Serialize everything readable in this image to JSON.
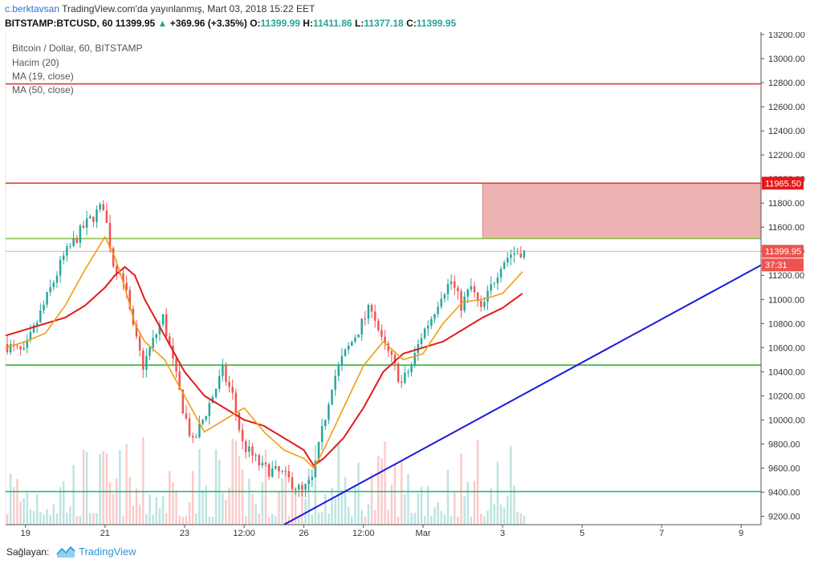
{
  "header": {
    "author": "c.berktavsan",
    "published": "TradingView.com'da yayınlanmış, Mart 03, 2018 15:22 EET",
    "symbol": "BITSTAMP:BTCUSD, 60",
    "last": "11399.95",
    "change": "+369.96 (+3.35%)",
    "o_label": "O:",
    "o": "11399.99",
    "h_label": "H:",
    "h": "11411.86",
    "l_label": "L:",
    "l": "11377.18",
    "c_label": "C:",
    "c": "11399.95"
  },
  "legend": {
    "title": "Bitcoin / Dollar, 60, BITSTAMP",
    "volume": "Hacim (20)",
    "ma19": "MA (19, close)",
    "ma50": "MA (50, close)"
  },
  "chart_data": {
    "type": "candlestick",
    "ylim": [
      9130,
      13220
    ],
    "y_ticks": [
      9200,
      9400,
      9600,
      9800,
      10000,
      10200,
      10400,
      10600,
      10800,
      11000,
      11200,
      11400,
      11600,
      11800,
      12000,
      12200,
      12400,
      12600,
      12800,
      13000,
      13200
    ],
    "x_ticks": [
      "19",
      "21",
      "23",
      "12:00",
      "26",
      "12:00",
      "Mar",
      "3",
      "5",
      "7",
      "9"
    ],
    "price_tags": {
      "upper": "11965.50",
      "last": "11399.95",
      "countdown": "37:31"
    },
    "horizontal_levels": [
      {
        "price": 12790,
        "color": "#e53935"
      },
      {
        "price": 11965.5,
        "color": "#e53935"
      },
      {
        "price": 11505,
        "color": "#8bc34a"
      },
      {
        "price": 10455,
        "color": "#2eb82e"
      },
      {
        "price": 9405,
        "color": "#20c070"
      }
    ],
    "resistance_zone": {
      "price_top": 11965.5,
      "price_bottom": 11505,
      "from": "Mar 2 12:00",
      "to": "open"
    },
    "trendline": {
      "from": {
        "time": "Feb 25 12:00",
        "price": 9130
      },
      "to": {
        "time": "Mar 9 12:00",
        "price": 11285
      },
      "color": "#1a1adb"
    },
    "price_path": [
      [
        "Feb 18 12:00",
        10630
      ],
      [
        "Feb 19",
        10550
      ],
      [
        "Feb 19 12:00",
        10950
      ],
      [
        "Feb 20",
        11350
      ],
      [
        "Feb 20 12:00",
        11600
      ],
      [
        "Feb 21",
        11780
      ],
      [
        "Feb 21 06:00",
        11300
      ],
      [
        "Feb 21 12:00",
        11180
      ],
      [
        "Feb 21 18:00",
        10750
      ],
      [
        "Feb 22",
        10450
      ],
      [
        "Feb 22 12:00",
        10850
      ],
      [
        "Feb 23",
        10100
      ],
      [
        "Feb 23 06:00",
        9800
      ],
      [
        "Feb 23 12:00",
        10000
      ],
      [
        "Feb 23 18:00",
        10200
      ],
      [
        "Feb 24",
        10400
      ],
      [
        "Feb 24 06:00",
        10200
      ],
      [
        "Feb 24 12:00",
        9800
      ],
      [
        "Feb 25",
        9600
      ],
      [
        "Feb 25 12:00",
        9550
      ],
      [
        "Feb 26",
        9400
      ],
      [
        "Feb 26 06:00",
        9500
      ],
      [
        "Feb 26 12:00",
        9900
      ],
      [
        "Feb 26 18:00",
        10300
      ],
      [
        "Feb 27",
        10500
      ],
      [
        "Feb 27 06:00",
        10650
      ],
      [
        "Feb 27 12:00",
        10800
      ],
      [
        "Feb 27 18:00",
        10950
      ],
      [
        "Feb 28",
        10650
      ],
      [
        "Feb 28 06:00",
        10500
      ],
      [
        "Feb 28 12:00",
        10300
      ],
      [
        "Feb 28 18:00",
        10450
      ],
      [
        "Mar 1",
        10700
      ],
      [
        "Mar 1 06:00",
        10850
      ],
      [
        "Mar 1 12:00",
        11050
      ],
      [
        "Mar 1 18:00",
        11150
      ],
      [
        "Mar 2",
        10950
      ],
      [
        "Mar 2 06:00",
        11100
      ],
      [
        "Mar 2 12:00",
        10900
      ],
      [
        "Mar 2 18:00",
        11100
      ],
      [
        "Mar 3",
        11300
      ],
      [
        "Mar 3 06:00",
        11380
      ],
      [
        "Mar 3 12:00",
        11400
      ]
    ],
    "ma19_path": [
      [
        "Feb 18 12:00",
        10600
      ],
      [
        "Feb 19",
        10650
      ],
      [
        "Feb 19 12:00",
        10720
      ],
      [
        "Feb 20",
        10950
      ],
      [
        "Feb 20 12:00",
        11250
      ],
      [
        "Feb 21",
        11520
      ],
      [
        "Feb 21 06:00",
        11350
      ],
      [
        "Feb 21 12:00",
        11100
      ],
      [
        "Feb 21 18:00",
        10800
      ],
      [
        "Feb 22",
        10650
      ],
      [
        "Feb 22 12:00",
        10500
      ],
      [
        "Feb 23",
        10200
      ],
      [
        "Feb 23 12:00",
        9900
      ],
      [
        "Feb 24",
        10000
      ],
      [
        "Feb 24 12:00",
        10100
      ],
      [
        "Feb 25",
        9900
      ],
      [
        "Feb 25 12:00",
        9750
      ],
      [
        "Feb 26",
        9680
      ],
      [
        "Feb 26 06:00",
        9600
      ],
      [
        "Feb 26 12:00",
        9750
      ],
      [
        "Feb 27",
        10100
      ],
      [
        "Feb 27 12:00",
        10450
      ],
      [
        "Feb 28",
        10650
      ],
      [
        "Feb 28 12:00",
        10500
      ],
      [
        "Mar 1",
        10550
      ],
      [
        "Mar 1 12:00",
        10800
      ],
      [
        "Mar 2",
        10980
      ],
      [
        "Mar 2 12:00",
        11000
      ],
      [
        "Mar 3",
        11050
      ],
      [
        "Mar 3 12:00",
        11230
      ]
    ],
    "ma50_path": [
      [
        "Feb 18 12:00",
        10700
      ],
      [
        "Feb 19",
        10750
      ],
      [
        "Feb 19 12:00",
        10800
      ],
      [
        "Feb 20",
        10850
      ],
      [
        "Feb 20 12:00",
        10950
      ],
      [
        "Feb 21",
        11100
      ],
      [
        "Feb 21 06:00",
        11200
      ],
      [
        "Feb 21 12:00",
        11270
      ],
      [
        "Feb 21 18:00",
        11200
      ],
      [
        "Feb 22",
        11000
      ],
      [
        "Feb 22 12:00",
        10700
      ],
      [
        "Feb 23",
        10400
      ],
      [
        "Feb 23 12:00",
        10200
      ],
      [
        "Feb 24",
        10100
      ],
      [
        "Feb 24 12:00",
        10000
      ],
      [
        "Feb 25",
        9950
      ],
      [
        "Feb 25 12:00",
        9850
      ],
      [
        "Feb 26",
        9750
      ],
      [
        "Feb 26 06:00",
        9620
      ],
      [
        "Feb 26 12:00",
        9680
      ],
      [
        "Feb 27",
        9850
      ],
      [
        "Feb 27 12:00",
        10100
      ],
      [
        "Feb 28",
        10400
      ],
      [
        "Feb 28 12:00",
        10550
      ],
      [
        "Mar 1",
        10600
      ],
      [
        "Mar 1 12:00",
        10650
      ],
      [
        "Mar 2",
        10750
      ],
      [
        "Mar 2 12:00",
        10850
      ],
      [
        "Mar 3",
        10930
      ],
      [
        "Mar 3 12:00",
        11050
      ]
    ],
    "volume_note": "volume histogram along the bottom of the pane (values not labeled)"
  },
  "footer": {
    "label": "Sağlayan:",
    "brand": "TradingView"
  },
  "colors": {
    "up": "#26a69a",
    "down": "#ef5350",
    "ma19": "#f39c12",
    "ma50": "#e31a1a",
    "zone": "#e8a0a0"
  }
}
